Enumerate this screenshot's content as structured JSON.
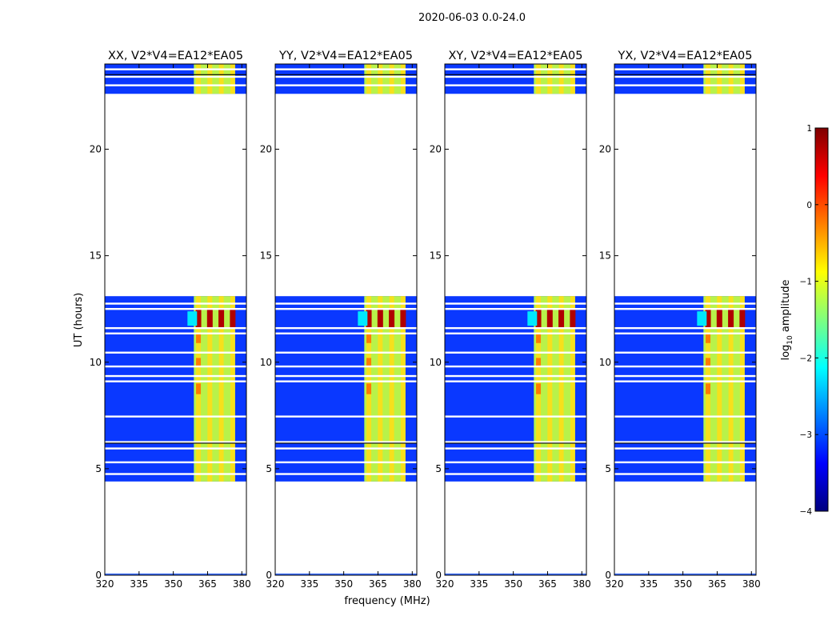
{
  "chart_data": {
    "type": "heatmap",
    "suptitle": "2020-06-03 0.0-24.0",
    "xlabel": "frequency (MHz)",
    "ylabel": "UT (hours)",
    "xlim": [
      320,
      382
    ],
    "ylim": [
      0,
      24
    ],
    "x_ticks": [
      320,
      335,
      350,
      365,
      380
    ],
    "y_ticks": [
      0,
      5,
      10,
      15,
      20
    ],
    "x_tick_labels": [
      "320",
      "335",
      "350",
      "365",
      "380"
    ],
    "y_tick_labels": [
      "0",
      "5",
      "10",
      "15",
      "20"
    ],
    "panels": [
      {
        "title": "XX, V2*V4=EA12*EA05",
        "polarization": "XX"
      },
      {
        "title": "YY, V2*V4=EA12*EA05",
        "polarization": "YY"
      },
      {
        "title": "XY, V2*V4=EA12*EA05",
        "polarization": "XY"
      },
      {
        "title": "YX, V2*V4=EA12*EA05",
        "polarization": "YX"
      }
    ],
    "data_time_ranges_hours": [
      [
        4.4,
        13.1
      ],
      [
        22.6,
        24.0
      ]
    ],
    "high_amplitude_band_mhz": [
      359,
      377
    ],
    "high_amplitude_channels_mhz": [
      361,
      366,
      371,
      376
    ],
    "peak_time_range_hours": [
      11.6,
      12.5
    ],
    "approx_log10_amplitude": {
      "low_band_background": -3.2,
      "high_band": -1.0,
      "peak": 0.8
    },
    "colorbar": {
      "label": "log10 amplitude",
      "label_prefix": "log",
      "label_sub": "10",
      "label_suffix": " amplitude",
      "range": [
        -4,
        1
      ],
      "ticks": [
        1,
        0,
        -1,
        -2,
        -3,
        -4
      ],
      "tick_labels": [
        "1",
        "0",
        "−1",
        "−2",
        "−3",
        "−4"
      ],
      "colormap": "jet",
      "stops": [
        "#00007f",
        "#0000ff",
        "#007fff",
        "#00ffff",
        "#7fff7f",
        "#ffff00",
        "#ff7f00",
        "#ff0000",
        "#7f0000"
      ]
    }
  }
}
